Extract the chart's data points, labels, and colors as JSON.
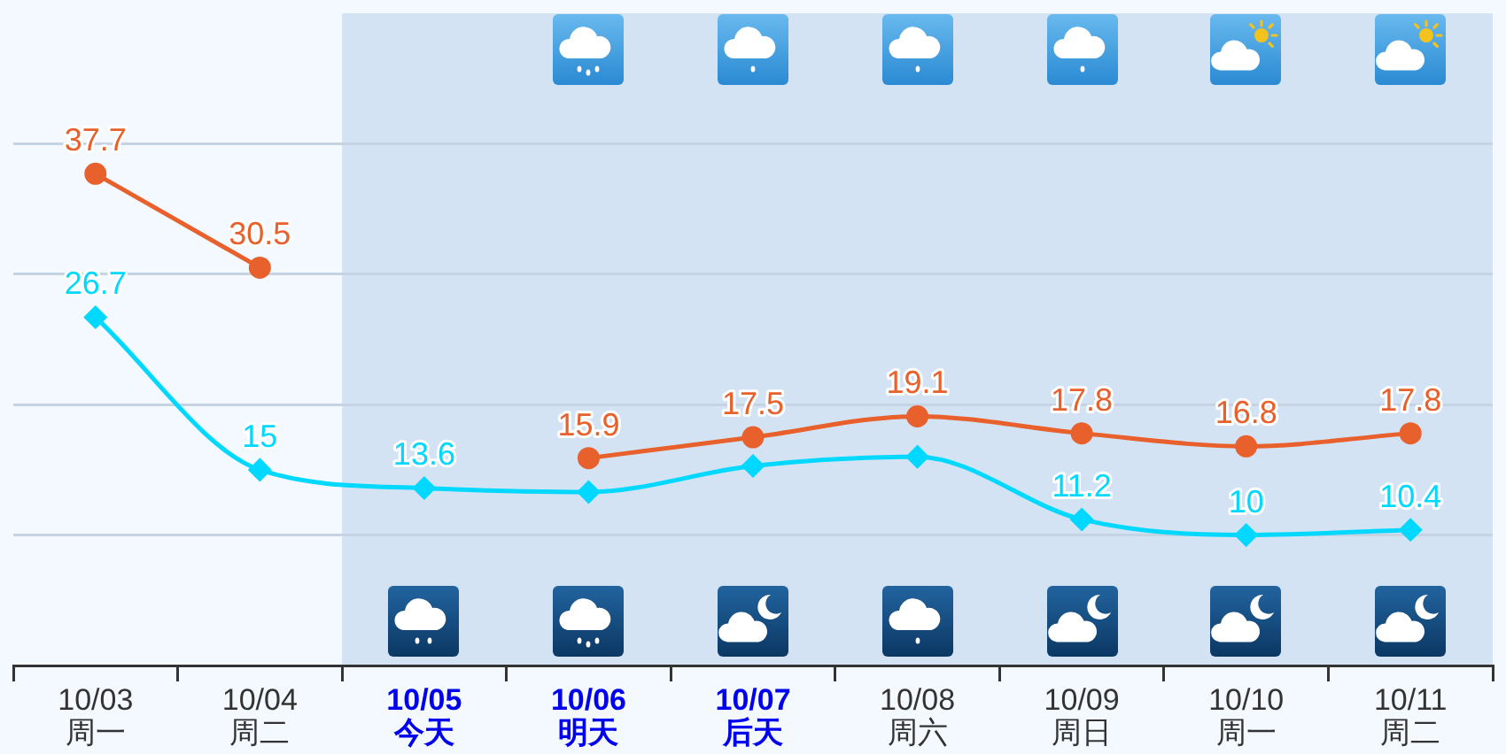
{
  "chart_data": {
    "type": "line",
    "categories": [
      "10/03\n周一",
      "10/04\n周二",
      "10/05\n今天",
      "10/06\n明天",
      "10/07\n后天",
      "10/08\n周六",
      "10/09\n周日",
      "10/10\n周一",
      "10/11\n周二"
    ],
    "series": [
      {
        "color": "#e8602c",
        "marker": "circle",
        "values": [
          37.7,
          30.5,
          null,
          15.9,
          17.5,
          19.1,
          17.8,
          16.8,
          17.8
        ],
        "value_labels": [
          "37.7",
          "30.5",
          null,
          "15.9",
          "17.5",
          "19.1",
          "17.8",
          "16.8",
          "17.8"
        ]
      },
      {
        "color": "#00d8ff",
        "marker": "diamond",
        "values": [
          26.7,
          15,
          13.6,
          13.3,
          15.3,
          16,
          11.2,
          10,
          10.4
        ],
        "value_labels": [
          "26.7",
          "15",
          "13.6",
          null,
          null,
          null,
          "11.2",
          "10",
          "10.4"
        ]
      }
    ],
    "ylim": [
      0,
      50
    ],
    "yticks": [
      {
        "value": 10,
        "label": null
      },
      {
        "value": 20,
        "label": null
      },
      {
        "value": 30,
        "label": null
      },
      {
        "value": 40,
        "label": null
      }
    ],
    "grid": "y",
    "tick_labels": "x",
    "legend": false,
    "line_style": "solid",
    "bands": [
      {
        "axis": "x",
        "from": "10/05\n今天",
        "to": "10/11\n周二",
        "color": "#d3e3f4"
      }
    ]
  }
}
